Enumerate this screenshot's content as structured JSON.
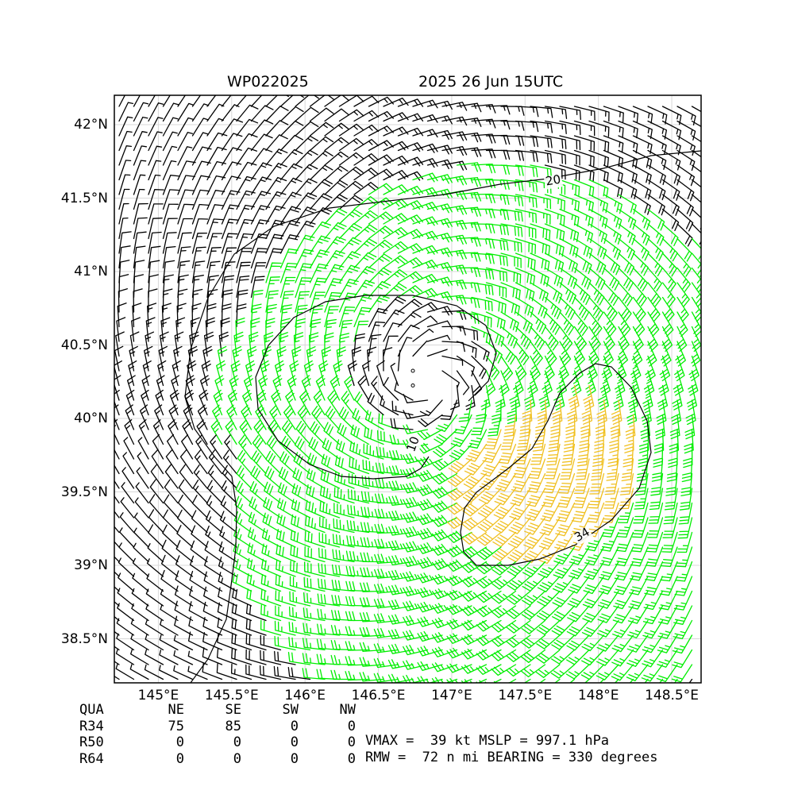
{
  "title_left": "WP022025",
  "title_right": "2025 26 Jun 15UTC",
  "y_ticks": [
    {
      "lat": 42.0,
      "label": "42°N"
    },
    {
      "lat": 41.5,
      "label": "41.5°N"
    },
    {
      "lat": 41.0,
      "label": "41°N"
    },
    {
      "lat": 40.5,
      "label": "40.5°N"
    },
    {
      "lat": 40.0,
      "label": "40°N"
    },
    {
      "lat": 39.5,
      "label": "39.5°N"
    },
    {
      "lat": 39.0,
      "label": "39°N"
    },
    {
      "lat": 38.5,
      "label": "38.5°N"
    }
  ],
  "x_ticks": [
    {
      "lon": 145.0,
      "label": "145°E"
    },
    {
      "lon": 145.5,
      "label": "145.5°E"
    },
    {
      "lon": 146.0,
      "label": "146°E"
    },
    {
      "lon": 146.5,
      "label": "146.5°E"
    },
    {
      "lon": 147.0,
      "label": "147°E"
    },
    {
      "lon": 147.5,
      "label": "147.5°E"
    },
    {
      "lon": 148.0,
      "label": "148°E"
    },
    {
      "lon": 148.5,
      "label": "148.5°E"
    }
  ],
  "map": {
    "lon_range": [
      144.7,
      148.7
    ],
    "lat_range": [
      38.2,
      42.2
    ],
    "storm_center": {
      "lon": 146.85,
      "lat": 40.25
    },
    "grid": true,
    "contour_labels": [
      "20",
      "10",
      "34"
    ],
    "colors": {
      "barb_weak": "#000000",
      "barb_ts": "#00ee00",
      "barb_r34_region": "#f0c020",
      "contour": "#000000",
      "grid": "#d8d8d8"
    }
  },
  "radii_table": {
    "header": [
      "QUA",
      "NE",
      "SE",
      "SW",
      "NW"
    ],
    "rows": [
      {
        "label": "R34",
        "values": [
          "75",
          "85",
          "0",
          "0"
        ]
      },
      {
        "label": "R50",
        "values": [
          "0",
          "0",
          "0",
          "0"
        ]
      },
      {
        "label": "R64",
        "values": [
          "0",
          "0",
          "0",
          "0"
        ]
      }
    ]
  },
  "info_line_1": "VMAX =  39 kt MSLP = 997.1 hPa",
  "info_line_2": "RMW =  72 n mi BEARING = 330 degrees"
}
